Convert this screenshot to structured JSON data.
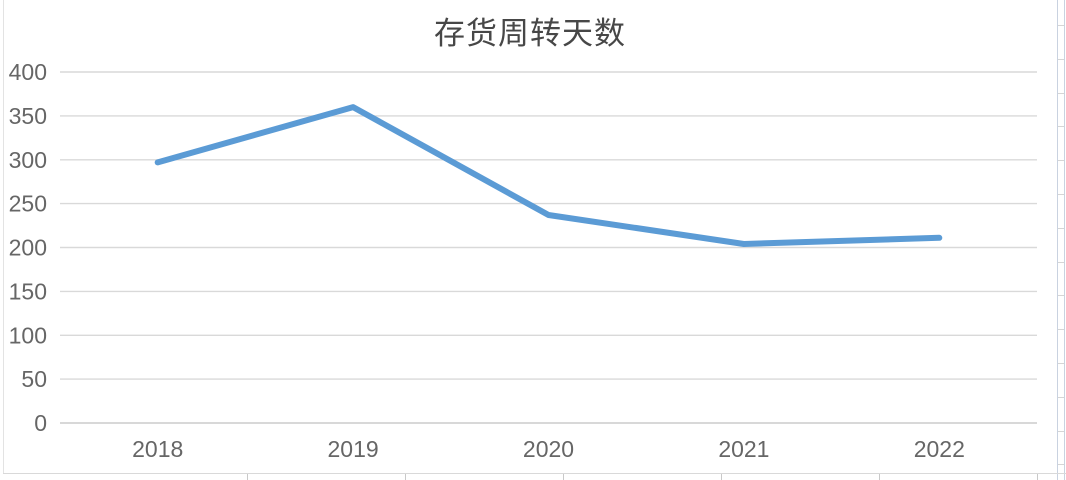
{
  "title": "存货周转天数",
  "chart_data": {
    "type": "line",
    "title": "存货周转天数",
    "categories": [
      "2018",
      "2019",
      "2020",
      "2021",
      "2022"
    ],
    "series": [
      {
        "name": "存货周转天数",
        "values": [
          297,
          360,
          237,
          204,
          211
        ]
      }
    ],
    "ylim": [
      0,
      400
    ],
    "yticks": [
      0,
      50,
      100,
      150,
      200,
      250,
      300,
      350,
      400
    ],
    "xlabel": "",
    "ylabel": "",
    "grid": "horizontal",
    "legend": "none",
    "colors": {
      "line": "#5b9bd5",
      "gridline": "#d9d9d9",
      "zero_line": "#cccccc",
      "axis_label": "#666666",
      "title": "#474747"
    }
  }
}
